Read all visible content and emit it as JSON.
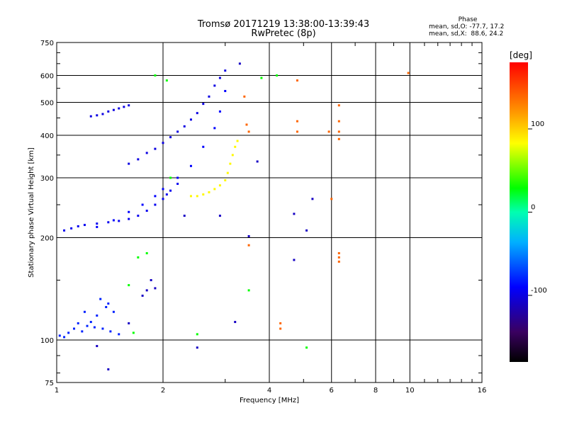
{
  "header": {
    "title_line1": "Tromsø 20171219 13:38:00-13:39:43",
    "title_line2": "RwPretec (8p)"
  },
  "phase_stats": {
    "heading": "Phase",
    "line_o": "mean, sd,O: -77.7, 17.2",
    "line_x": "mean, sd,X:  88.6, 24.2"
  },
  "colorbar": {
    "label": "[deg]",
    "ticks": [
      {
        "value": 100,
        "label": "100"
      },
      {
        "value": 0,
        "label": "0"
      },
      {
        "value": -100,
        "label": "-100"
      }
    ],
    "range": [
      -180,
      180
    ]
  },
  "chart_data": {
    "type": "scatter",
    "xlabel": "Frequency [MHz]",
    "ylabel": "Stationary phase Virtual Height [km]",
    "xscale": "log",
    "yscale": "log",
    "xlim": [
      1,
      16
    ],
    "ylim": [
      75,
      750
    ],
    "xticks": [
      1,
      2,
      4,
      6,
      8,
      10,
      16
    ],
    "xtick_labels": [
      "1",
      "2",
      "4",
      "6",
      "8",
      "10",
      "16"
    ],
    "yticks": [
      75,
      100,
      200,
      300,
      400,
      500,
      600,
      750
    ],
    "ytick_labels": [
      "75",
      "100",
      "200",
      "300",
      "400",
      "500",
      "600",
      "750"
    ],
    "grid": true,
    "color_quantity": "phase [deg]",
    "traces": [
      {
        "kind": "o-lower",
        "phase": -95,
        "points": [
          [
            1.05,
            210
          ],
          [
            1.1,
            213
          ],
          [
            1.15,
            216
          ],
          [
            1.2,
            218
          ],
          [
            1.3,
            220
          ],
          [
            1.4,
            222
          ],
          [
            1.5,
            224
          ],
          [
            1.6,
            227
          ],
          [
            1.7,
            232
          ],
          [
            1.8,
            240
          ],
          [
            1.9,
            250
          ],
          [
            2.0,
            260
          ],
          [
            2.05,
            268
          ],
          [
            2.1,
            275
          ],
          [
            2.2,
            288
          ]
        ]
      },
      {
        "kind": "o-upper",
        "phase": -100,
        "points": [
          [
            1.6,
            330
          ],
          [
            1.7,
            340
          ],
          [
            1.8,
            355
          ],
          [
            1.9,
            365
          ],
          [
            2.0,
            380
          ],
          [
            2.1,
            395
          ],
          [
            2.2,
            410
          ],
          [
            2.3,
            425
          ],
          [
            2.4,
            445
          ],
          [
            2.5,
            465
          ],
          [
            2.6,
            495
          ],
          [
            2.7,
            520
          ],
          [
            2.8,
            560
          ],
          [
            2.9,
            590
          ],
          [
            3.0,
            620
          ]
        ]
      },
      {
        "kind": "o-lower-upper",
        "phase": -90,
        "points": [
          [
            1.3,
            215
          ],
          [
            1.45,
            225
          ],
          [
            1.6,
            238
          ],
          [
            1.75,
            250
          ],
          [
            1.9,
            265
          ],
          [
            2.0,
            278
          ],
          [
            2.2,
            300
          ],
          [
            2.4,
            325
          ],
          [
            2.6,
            370
          ],
          [
            2.8,
            420
          ],
          [
            2.9,
            470
          ],
          [
            3.0,
            540
          ]
        ]
      },
      {
        "kind": "o-band-450",
        "phase": -100,
        "points": [
          [
            1.25,
            455
          ],
          [
            1.3,
            458
          ],
          [
            1.35,
            462
          ],
          [
            1.4,
            470
          ],
          [
            1.45,
            475
          ],
          [
            1.5,
            480
          ],
          [
            1.55,
            485
          ],
          [
            1.6,
            490
          ]
        ]
      },
      {
        "kind": "x-cusp",
        "phase": 85,
        "points": [
          [
            2.4,
            265
          ],
          [
            2.5,
            265
          ],
          [
            2.6,
            268
          ],
          [
            2.7,
            272
          ],
          [
            2.8,
            278
          ],
          [
            2.9,
            285
          ],
          [
            3.0,
            295
          ],
          [
            3.05,
            310
          ],
          [
            3.1,
            330
          ],
          [
            3.15,
            350
          ],
          [
            3.2,
            370
          ],
          [
            3.25,
            385
          ]
        ]
      },
      {
        "kind": "e-layer",
        "phase": -80,
        "points": [
          [
            1.02,
            103
          ],
          [
            1.05,
            102
          ],
          [
            1.08,
            105
          ],
          [
            1.12,
            108
          ],
          [
            1.18,
            106
          ],
          [
            1.22,
            110
          ],
          [
            1.28,
            109
          ],
          [
            1.35,
            108
          ],
          [
            1.42,
            106
          ],
          [
            1.5,
            104
          ],
          [
            1.15,
            112
          ],
          [
            1.25,
            113
          ],
          [
            1.3,
            118
          ],
          [
            1.38,
            125
          ],
          [
            1.45,
            121
          ],
          [
            1.2,
            121
          ],
          [
            1.33,
            132
          ],
          [
            1.4,
            128
          ]
        ]
      },
      {
        "kind": "scattered-hf",
        "phase": 140,
        "points": [
          [
            3.4,
            520
          ],
          [
            3.45,
            430
          ],
          [
            3.5,
            410
          ],
          [
            4.8,
            580
          ],
          [
            4.8,
            440
          ],
          [
            4.8,
            410
          ],
          [
            5.9,
            410
          ],
          [
            6.3,
            490
          ],
          [
            6.3,
            440
          ],
          [
            6.3,
            410
          ],
          [
            6.3,
            390
          ],
          [
            6.0,
            260
          ],
          [
            6.3,
            180
          ],
          [
            6.3,
            175
          ],
          [
            6.3,
            170
          ],
          [
            3.5,
            190
          ],
          [
            4.3,
            112
          ],
          [
            4.3,
            108
          ],
          [
            9.9,
            610
          ]
        ]
      },
      {
        "kind": "scattered-blue",
        "phase": -110,
        "points": [
          [
            3.3,
            650
          ],
          [
            3.7,
            335
          ],
          [
            4.7,
            235
          ],
          [
            5.1,
            210
          ],
          [
            5.3,
            260
          ],
          [
            4.7,
            172
          ],
          [
            3.5,
            202
          ],
          [
            2.3,
            232
          ],
          [
            2.9,
            232
          ],
          [
            3.2,
            113
          ],
          [
            2.5,
            95
          ],
          [
            1.4,
            82
          ],
          [
            1.3,
            96
          ],
          [
            1.6,
            112
          ],
          [
            1.8,
            140
          ],
          [
            1.85,
            150
          ],
          [
            1.9,
            142
          ],
          [
            1.75,
            135
          ]
        ]
      },
      {
        "kind": "scattered-misc",
        "phase": 30,
        "points": [
          [
            3.5,
            140
          ],
          [
            1.6,
            145
          ],
          [
            1.8,
            180
          ],
          [
            2.5,
            104
          ],
          [
            1.65,
            105
          ],
          [
            5.1,
            95
          ],
          [
            1.7,
            175
          ],
          [
            2.1,
            300
          ],
          [
            3.8,
            590
          ],
          [
            4.2,
            600
          ],
          [
            1.9,
            600
          ],
          [
            2.05,
            580
          ]
        ]
      }
    ]
  }
}
